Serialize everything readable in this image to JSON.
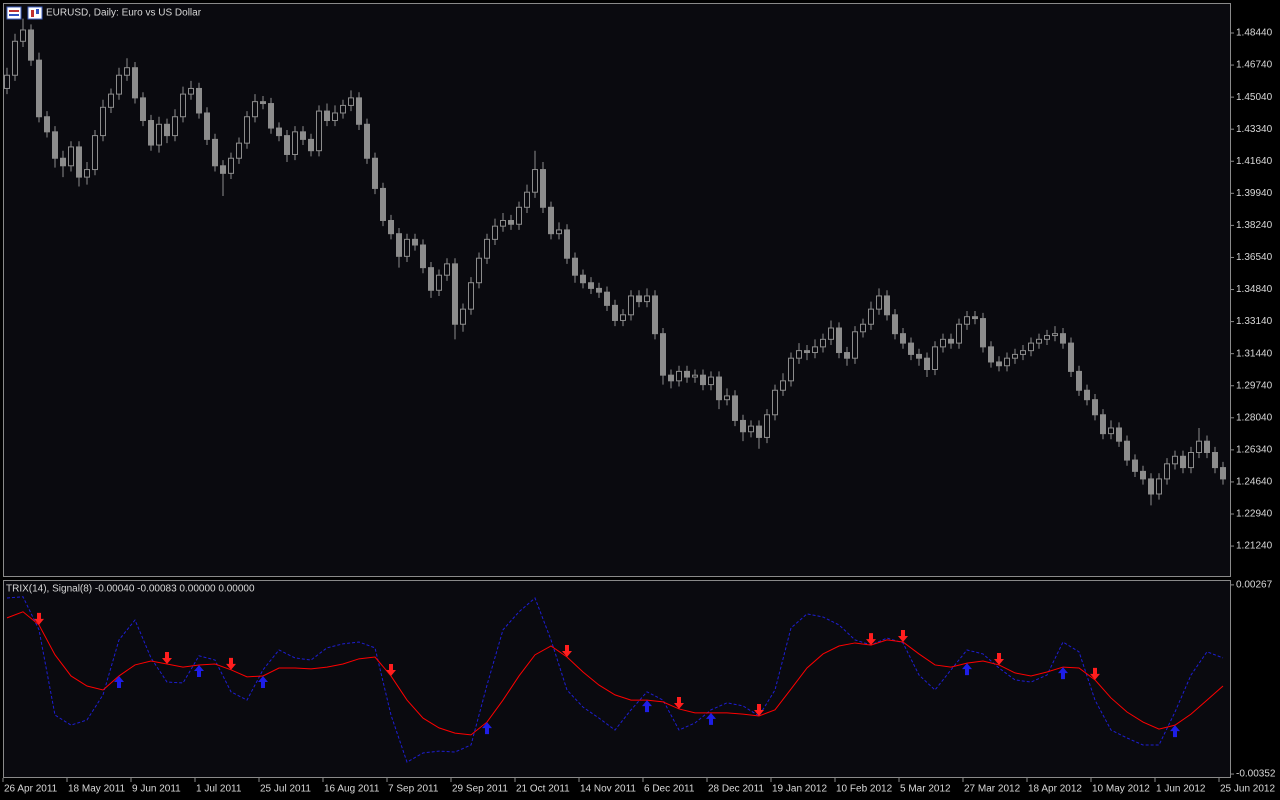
{
  "chart_data": [
    {
      "type": "candlestick",
      "title": "EURUSD, Daily:  Euro vs US Dollar",
      "color": "#8c8c8c",
      "open": [
        1.455,
        1.462,
        1.48,
        1.486,
        1.47,
        1.44,
        1.432,
        1.418,
        1.414,
        1.424,
        1.408,
        1.412,
        1.43,
        1.445,
        1.452,
        1.462,
        1.466,
        1.45,
        1.438,
        1.425,
        1.436,
        1.43,
        1.44,
        1.452,
        1.455,
        1.442,
        1.428,
        1.414,
        1.41,
        1.418,
        1.426,
        1.44,
        1.448,
        1.447,
        1.434,
        1.43,
        1.42,
        1.432,
        1.428,
        1.422,
        1.443,
        1.438,
        1.442,
        1.446,
        1.45,
        1.436,
        1.418,
        1.402,
        1.385,
        1.378,
        1.366,
        1.375,
        1.372,
        1.36,
        1.348,
        1.356,
        1.362,
        1.33,
        1.338,
        1.352,
        1.365,
        1.375,
        1.382,
        1.385,
        1.383,
        1.392,
        1.4,
        1.412,
        1.392,
        1.378,
        1.38,
        1.365,
        1.356,
        1.352,
        1.349,
        1.347,
        1.34,
        1.332,
        1.335,
        1.345,
        1.342,
        1.345,
        1.325,
        1.303,
        1.3,
        1.305,
        1.302,
        1.303,
        1.298,
        1.302,
        1.29,
        1.292,
        1.279,
        1.273,
        1.276,
        1.27,
        1.282,
        1.295,
        1.3,
        1.312,
        1.316,
        1.315,
        1.318,
        1.322,
        1.328,
        1.315,
        1.312,
        1.326,
        1.33,
        1.338,
        1.345,
        1.335,
        1.325,
        1.32,
        1.314,
        1.312,
        1.306,
        1.318,
        1.322,
        1.32,
        1.33,
        1.334,
        1.333,
        1.318,
        1.31,
        1.308,
        1.312,
        1.314,
        1.316,
        1.32,
        1.322,
        1.324,
        1.325,
        1.32,
        1.305,
        1.295,
        1.29,
        1.282,
        1.272,
        1.275,
        1.268,
        1.258,
        1.252,
        1.248,
        1.24,
        1.248,
        1.256,
        1.26,
        1.254,
        1.262,
        1.268,
        1.262,
        1.254
      ],
      "high": [
        1.466,
        1.484,
        1.492,
        1.489,
        1.474,
        1.443,
        1.435,
        1.422,
        1.427,
        1.427,
        1.416,
        1.433,
        1.449,
        1.455,
        1.466,
        1.471,
        1.469,
        1.453,
        1.441,
        1.44,
        1.439,
        1.444,
        1.456,
        1.459,
        1.458,
        1.445,
        1.431,
        1.417,
        1.421,
        1.429,
        1.443,
        1.452,
        1.451,
        1.45,
        1.437,
        1.433,
        1.435,
        1.435,
        1.431,
        1.446,
        1.447,
        1.446,
        1.449,
        1.454,
        1.453,
        1.439,
        1.421,
        1.405,
        1.388,
        1.381,
        1.378,
        1.378,
        1.375,
        1.363,
        1.359,
        1.365,
        1.365,
        1.341,
        1.355,
        1.368,
        1.378,
        1.386,
        1.389,
        1.388,
        1.395,
        1.404,
        1.422,
        1.416,
        1.395,
        1.384,
        1.383,
        1.368,
        1.359,
        1.355,
        1.352,
        1.35,
        1.343,
        1.338,
        1.348,
        1.348,
        1.349,
        1.348,
        1.328,
        1.306,
        1.308,
        1.308,
        1.306,
        1.306,
        1.305,
        1.305,
        1.296,
        1.295,
        1.282,
        1.279,
        1.279,
        1.285,
        1.298,
        1.304,
        1.315,
        1.32,
        1.319,
        1.322,
        1.325,
        1.332,
        1.331,
        1.318,
        1.329,
        1.333,
        1.342,
        1.349,
        1.348,
        1.338,
        1.328,
        1.323,
        1.317,
        1.315,
        1.321,
        1.325,
        1.325,
        1.333,
        1.337,
        1.337,
        1.336,
        1.321,
        1.313,
        1.315,
        1.317,
        1.319,
        1.323,
        1.325,
        1.327,
        1.329,
        1.328,
        1.323,
        1.308,
        1.298,
        1.293,
        1.285,
        1.279,
        1.278,
        1.271,
        1.261,
        1.255,
        1.251,
        1.251,
        1.259,
        1.263,
        1.263,
        1.265,
        1.275,
        1.271,
        1.265,
        1.257
      ],
      "low": [
        1.452,
        1.459,
        1.477,
        1.467,
        1.437,
        1.429,
        1.413,
        1.408,
        1.411,
        1.403,
        1.404,
        1.409,
        1.427,
        1.442,
        1.449,
        1.459,
        1.447,
        1.435,
        1.422,
        1.421,
        1.426,
        1.427,
        1.437,
        1.449,
        1.439,
        1.425,
        1.411,
        1.398,
        1.407,
        1.415,
        1.423,
        1.437,
        1.444,
        1.431,
        1.427,
        1.416,
        1.417,
        1.425,
        1.419,
        1.419,
        1.435,
        1.435,
        1.439,
        1.443,
        1.433,
        1.415,
        1.399,
        1.382,
        1.375,
        1.36,
        1.363,
        1.369,
        1.357,
        1.344,
        1.345,
        1.353,
        1.322,
        1.326,
        1.335,
        1.349,
        1.362,
        1.372,
        1.379,
        1.38,
        1.38,
        1.389,
        1.397,
        1.389,
        1.375,
        1.375,
        1.362,
        1.352,
        1.349,
        1.346,
        1.344,
        1.337,
        1.329,
        1.329,
        1.332,
        1.339,
        1.339,
        1.322,
        1.298,
        1.296,
        1.297,
        1.299,
        1.299,
        1.295,
        1.295,
        1.285,
        1.287,
        1.276,
        1.268,
        1.27,
        1.264,
        1.267,
        1.279,
        1.292,
        1.297,
        1.309,
        1.311,
        1.312,
        1.315,
        1.319,
        1.312,
        1.308,
        1.309,
        1.323,
        1.327,
        1.335,
        1.332,
        1.322,
        1.317,
        1.311,
        1.308,
        1.302,
        1.303,
        1.315,
        1.317,
        1.317,
        1.327,
        1.33,
        1.315,
        1.307,
        1.305,
        1.305,
        1.309,
        1.311,
        1.313,
        1.317,
        1.319,
        1.321,
        1.317,
        1.302,
        1.292,
        1.287,
        1.279,
        1.269,
        1.269,
        1.265,
        1.255,
        1.249,
        1.245,
        1.234,
        1.237,
        1.245,
        1.253,
        1.251,
        1.251,
        1.259,
        1.259,
        1.251,
        1.245
      ],
      "close": [
        1.462,
        1.48,
        1.486,
        1.47,
        1.44,
        1.432,
        1.418,
        1.414,
        1.424,
        1.408,
        1.412,
        1.43,
        1.445,
        1.452,
        1.462,
        1.466,
        1.45,
        1.438,
        1.425,
        1.436,
        1.43,
        1.44,
        1.452,
        1.455,
        1.442,
        1.428,
        1.414,
        1.41,
        1.418,
        1.426,
        1.44,
        1.448,
        1.447,
        1.434,
        1.43,
        1.42,
        1.432,
        1.428,
        1.422,
        1.443,
        1.438,
        1.442,
        1.446,
        1.45,
        1.436,
        1.418,
        1.402,
        1.385,
        1.378,
        1.366,
        1.375,
        1.372,
        1.36,
        1.348,
        1.356,
        1.362,
        1.33,
        1.338,
        1.352,
        1.365,
        1.375,
        1.382,
        1.385,
        1.383,
        1.392,
        1.4,
        1.412,
        1.392,
        1.378,
        1.38,
        1.365,
        1.356,
        1.352,
        1.349,
        1.347,
        1.34,
        1.332,
        1.335,
        1.345,
        1.342,
        1.345,
        1.325,
        1.303,
        1.3,
        1.305,
        1.302,
        1.303,
        1.298,
        1.302,
        1.29,
        1.292,
        1.279,
        1.273,
        1.276,
        1.27,
        1.282,
        1.295,
        1.3,
        1.312,
        1.316,
        1.315,
        1.318,
        1.322,
        1.328,
        1.315,
        1.312,
        1.326,
        1.33,
        1.338,
        1.345,
        1.335,
        1.325,
        1.32,
        1.314,
        1.312,
        1.306,
        1.318,
        1.322,
        1.32,
        1.33,
        1.334,
        1.333,
        1.318,
        1.31,
        1.308,
        1.312,
        1.314,
        1.316,
        1.32,
        1.322,
        1.324,
        1.325,
        1.32,
        1.305,
        1.295,
        1.29,
        1.282,
        1.272,
        1.275,
        1.268,
        1.258,
        1.252,
        1.248,
        1.24,
        1.248,
        1.256,
        1.26,
        1.254,
        1.262,
        1.268,
        1.262,
        1.254,
        1.248
      ],
      "ylim": [
        1.196,
        1.5003
      ],
      "yticks": [
        {
          "value": 1.4844,
          "label": "1.48440"
        },
        {
          "value": 1.4674,
          "label": "1.46740"
        },
        {
          "value": 1.4504,
          "label": "1.45040"
        },
        {
          "value": 1.4334,
          "label": "1.43340"
        },
        {
          "value": 1.4164,
          "label": "1.41640"
        },
        {
          "value": 1.3994,
          "label": "1.39940"
        },
        {
          "value": 1.3824,
          "label": "1.38240"
        },
        {
          "value": 1.3654,
          "label": "1.36540"
        },
        {
          "value": 1.3484,
          "label": "1.34840"
        },
        {
          "value": 1.3314,
          "label": "1.33140"
        },
        {
          "value": 1.3144,
          "label": "1.31440"
        },
        {
          "value": 1.2974,
          "label": "1.29740"
        },
        {
          "value": 1.2804,
          "label": "1.28040"
        },
        {
          "value": 1.2634,
          "label": "1.26340"
        },
        {
          "value": 1.2464,
          "label": "1.24640"
        },
        {
          "value": 1.2294,
          "label": "1.22940"
        },
        {
          "value": 1.2124,
          "label": "1.21240"
        }
      ],
      "x_labels": [
        "26 Apr 2011",
        "18 May 2011",
        "9 Jun 2011",
        "1 Jul 2011",
        "25 Jul 2011",
        "16 Aug 2011",
        "7 Sep 2011",
        "29 Sep 2011",
        "21 Oct 2011",
        "14 Nov 2011",
        "6 Dec 2011",
        "28 Dec 2011",
        "19 Jan 2012",
        "10 Feb 2012",
        "5 Mar 2012",
        "27 Mar 2012",
        "18 Apr 2012",
        "10 May 2012",
        "1 Jun 2012",
        "25 Jun 2012"
      ]
    },
    {
      "type": "line",
      "title": "TRIX(14), Signal(8) -0.00040 -0.00083 0.00000 0.00000",
      "series": [
        {
          "color": "#1e1ed2",
          "dashed": true,
          "values": [
            0.00224,
            0.00228,
            0.0012,
            -0.00159,
            -0.00192,
            -0.00175,
            -0.00093,
            0.00087,
            0.00152,
            0.00028,
            -0.00051,
            -0.00054,
            0.00035,
            0.00021,
            -0.00083,
            -0.0011,
            -0.00011,
            0.00054,
            0.00028,
            0.00021,
            0.00061,
            0.00074,
            0.0008,
            0.00061,
            -0.00159,
            -0.00313,
            -0.00283,
            -0.00277,
            -0.0028,
            -0.00257,
            -0.00061,
            0.0012,
            0.00179,
            0.00224,
            0.00087,
            -0.00077,
            -0.00133,
            -0.00169,
            -0.00208,
            -0.00142,
            -0.00083,
            -0.0011,
            -0.00208,
            -0.00185,
            -0.00142,
            -0.00119,
            -0.00129,
            -0.00162,
            -0.00077,
            0.00126,
            0.00172,
            0.00162,
            0.00136,
            0.00087,
            0.0007,
            0.00093,
            0.00077,
            -0.00028,
            -0.00077,
            -0.00011,
            0.00054,
            0.00041,
            -5e-05,
            -0.00044,
            -0.00051,
            -0.00028,
            0.0008,
            0.00048,
            -0.0011,
            -0.00208,
            -0.00234,
            -0.00257,
            -0.00257,
            -0.00149,
            -0.00028,
            0.00048,
            0.00028
          ]
        },
        {
          "color": "#ff0000",
          "dashed": false,
          "values": [
            0.00159,
            0.00179,
            0.00136,
            0.00038,
            -0.00031,
            -0.00064,
            -0.00077,
            -0.00031,
            5e-05,
            0.00018,
            8e-05,
            -2e-05,
            5e-05,
            8e-05,
            -0.00011,
            -0.00034,
            -0.00031,
            -5e-05,
            -5e-05,
            -8e-05,
            -2e-05,
            8e-05,
            0.00025,
            0.00031,
            -0.00031,
            -0.0011,
            -0.00169,
            -0.00201,
            -0.00218,
            -0.00224,
            -0.00182,
            -0.0011,
            -0.00031,
            0.00038,
            0.00067,
            0.00031,
            -0.00018,
            -0.00061,
            -0.00093,
            -0.0011,
            -0.0011,
            -0.00116,
            -0.00139,
            -0.00152,
            -0.00152,
            -0.00152,
            -0.00156,
            -0.00162,
            -0.00142,
            -0.00074,
            -5e-05,
            0.00041,
            0.00067,
            0.00077,
            0.0007,
            0.00087,
            0.0008,
            0.00041,
            5e-05,
            -2e-05,
            0.00011,
            0.00018,
            5e-05,
            -0.00021,
            -0.00031,
            -0.00018,
            -2e-05,
            -5e-05,
            -0.00044,
            -0.00103,
            -0.00149,
            -0.00182,
            -0.00205,
            -0.00192,
            -0.00156,
            -0.0011,
            -0.00064
          ]
        }
      ],
      "up_color": "#1e1ee6",
      "down_color": "#ff1e1e",
      "ylim": [
        -0.00365,
        0.00283
      ],
      "yticks": [
        0.00267,
        -0.00352
      ]
    }
  ]
}
